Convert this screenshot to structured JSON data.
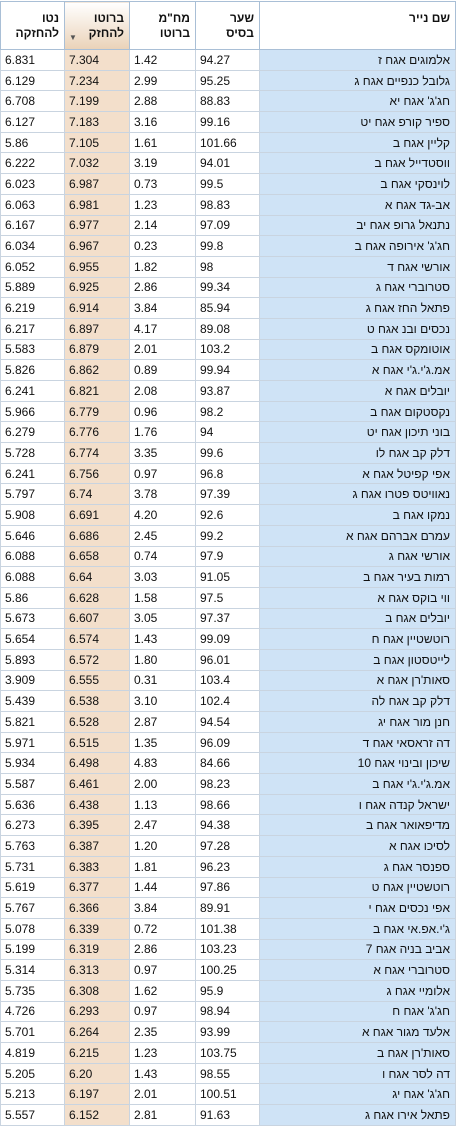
{
  "headers": {
    "name": "שם נייר",
    "base_price": [
      "שער",
      "בסיס"
    ],
    "duration": [
      "מח\"מ",
      "ברוטו"
    ],
    "gross": [
      "ברוטו",
      "להחזק"
    ],
    "net": [
      "נטו",
      "להחזקה"
    ]
  },
  "sort": {
    "column": "gross",
    "direction": "descending",
    "icon": "sort-down-arrow"
  },
  "colors": {
    "name_column": "#cfe3f6",
    "sorted_column": "#f3dfcb",
    "border": "#a9bfd6"
  },
  "rows": [
    {
      "name": "אלמוגים אגח ז",
      "base": "94.27",
      "dur": "1.42",
      "gross": "7.304",
      "net": "6.831"
    },
    {
      "name": "גלובל כנפיים אגח ג",
      "base": "95.25",
      "dur": "2.99",
      "gross": "7.234",
      "net": "6.129"
    },
    {
      "name": "חג'ג' אגח יא",
      "base": "88.83",
      "dur": "2.88",
      "gross": "7.199",
      "net": "6.708"
    },
    {
      "name": "ספיר קורפ אגח יט",
      "base": "99.16",
      "dur": "3.16",
      "gross": "7.183",
      "net": "6.127"
    },
    {
      "name": "קליין אגח ב",
      "base": "101.66",
      "dur": "1.61",
      "gross": "7.105",
      "net": "5.86"
    },
    {
      "name": "ווסטדייל אגח ב",
      "base": "94.01",
      "dur": "3.19",
      "gross": "7.032",
      "net": "6.222"
    },
    {
      "name": "לוינסקי אגח ב",
      "base": "99.5",
      "dur": "0.73",
      "gross": "6.987",
      "net": "6.023"
    },
    {
      "name": "אב-גד אגח א",
      "base": "98.83",
      "dur": "1.23",
      "gross": "6.981",
      "net": "6.063"
    },
    {
      "name": "נתנאל גרופ אגח יב",
      "base": "97.09",
      "dur": "2.14",
      "gross": "6.977",
      "net": "6.167"
    },
    {
      "name": "חג'ג' אירופה אגח ב",
      "base": "99.8",
      "dur": "0.23",
      "gross": "6.967",
      "net": "6.034"
    },
    {
      "name": "אורשי אגח ד",
      "base": "98",
      "dur": "1.82",
      "gross": "6.955",
      "net": "6.052"
    },
    {
      "name": "סטרוברי אגח ג",
      "base": "99.34",
      "dur": "2.86",
      "gross": "6.925",
      "net": "5.889"
    },
    {
      "name": "פתאל החז אגח ג",
      "base": "85.94",
      "dur": "3.84",
      "gross": "6.914",
      "net": "6.219"
    },
    {
      "name": "נכסים ובנ אגח ט",
      "base": "89.08",
      "dur": "4.17",
      "gross": "6.897",
      "net": "6.217"
    },
    {
      "name": "אוטומקס אגח ב",
      "base": "103.2",
      "dur": "2.01",
      "gross": "6.879",
      "net": "5.583"
    },
    {
      "name": "אמ.ג'י.ג'י אגח א",
      "base": "99.94",
      "dur": "0.89",
      "gross": "6.862",
      "net": "5.826"
    },
    {
      "name": "יובלים אגח א",
      "base": "93.87",
      "dur": "2.08",
      "gross": "6.821",
      "net": "6.241"
    },
    {
      "name": "נקסטקום אגח ב",
      "base": "98.2",
      "dur": "0.96",
      "gross": "6.779",
      "net": "5.966"
    },
    {
      "name": "בוני תיכון אגח יט",
      "base": "94",
      "dur": "1.76",
      "gross": "6.776",
      "net": "6.279"
    },
    {
      "name": "דלק קב אגח לו",
      "base": "99.6",
      "dur": "3.35",
      "gross": "6.774",
      "net": "5.728"
    },
    {
      "name": "אפי קפיטל אגח א",
      "base": "96.8",
      "dur": "0.97",
      "gross": "6.756",
      "net": "6.241"
    },
    {
      "name": "נאוויטס פטרו אגח ג",
      "base": "97.39",
      "dur": "3.78",
      "gross": "6.74",
      "net": "5.797"
    },
    {
      "name": "נמקו אגח ב",
      "base": "92.6",
      "dur": "4.20",
      "gross": "6.691",
      "net": "5.908"
    },
    {
      "name": "עמרם אברהם אגח א",
      "base": "99.2",
      "dur": "2.45",
      "gross": "6.686",
      "net": "5.646"
    },
    {
      "name": "אורשי אגח ג",
      "base": "97.9",
      "dur": "0.74",
      "gross": "6.658",
      "net": "6.088"
    },
    {
      "name": "רמות בעיר אגח ב",
      "base": "91.05",
      "dur": "3.03",
      "gross": "6.64",
      "net": "6.088"
    },
    {
      "name": "ווי בוקס אגח א",
      "base": "97.5",
      "dur": "1.58",
      "gross": "6.628",
      "net": "5.86"
    },
    {
      "name": "יובלים אגח ב",
      "base": "97.37",
      "dur": "3.05",
      "gross": "6.607",
      "net": "5.673"
    },
    {
      "name": "רוטשטיין אגח ח",
      "base": "99.09",
      "dur": "1.43",
      "gross": "6.574",
      "net": "5.654"
    },
    {
      "name": "לייטסטון אגח ב",
      "base": "96.01",
      "dur": "1.80",
      "gross": "6.572",
      "net": "5.893"
    },
    {
      "name": "סאות'רן אגח א",
      "base": "103.4",
      "dur": "0.31",
      "gross": "6.555",
      "net": "3.909"
    },
    {
      "name": "דלק קב אגח לה",
      "base": "102.4",
      "dur": "3.10",
      "gross": "6.538",
      "net": "5.439"
    },
    {
      "name": "חנן מור אגח יג",
      "base": "94.54",
      "dur": "2.87",
      "gross": "6.528",
      "net": "5.821"
    },
    {
      "name": "דה זראסאי אגח ד",
      "base": "96.09",
      "dur": "1.35",
      "gross": "6.515",
      "net": "5.971"
    },
    {
      "name": "שיכון ובינוי אגח 10",
      "base": "84.66",
      "dur": "4.83",
      "gross": "6.498",
      "net": "5.934"
    },
    {
      "name": "אמ.ג'י.ג'י אגח ב",
      "base": "98.23",
      "dur": "2.00",
      "gross": "6.461",
      "net": "5.587"
    },
    {
      "name": "ישראל קנדה אגח ו",
      "base": "98.66",
      "dur": "1.13",
      "gross": "6.438",
      "net": "5.636"
    },
    {
      "name": "מדיפאואר אגח ב",
      "base": "94.38",
      "dur": "2.47",
      "gross": "6.395",
      "net": "6.273"
    },
    {
      "name": "לסיכו אגח א",
      "base": "97.28",
      "dur": "1.20",
      "gross": "6.387",
      "net": "5.763"
    },
    {
      "name": "ספנסר אגח ג",
      "base": "96.23",
      "dur": "1.81",
      "gross": "6.383",
      "net": "5.731"
    },
    {
      "name": "רוטשטיין אגח ט",
      "base": "97.86",
      "dur": "1.44",
      "gross": "6.377",
      "net": "5.619"
    },
    {
      "name": "אפי נכסים אגח י",
      "base": "89.91",
      "dur": "3.84",
      "gross": "6.366",
      "net": "5.767"
    },
    {
      "name": "ג'י.אפ.אי אגח ב",
      "base": "101.38",
      "dur": "0.72",
      "gross": "6.339",
      "net": "5.078"
    },
    {
      "name": "אביב בניה אגח 7",
      "base": "103.23",
      "dur": "2.86",
      "gross": "6.319",
      "net": "5.199"
    },
    {
      "name": "סטרוברי אגח א",
      "base": "100.25",
      "dur": "0.97",
      "gross": "6.313",
      "net": "5.314"
    },
    {
      "name": "אלומיי אגח ג",
      "base": "95.9",
      "dur": "1.62",
      "gross": "6.308",
      "net": "5.735"
    },
    {
      "name": "חג'ג' אגח ח",
      "base": "98.94",
      "dur": "0.97",
      "gross": "6.293",
      "net": "4.726"
    },
    {
      "name": "אלעד מגור אגח א",
      "base": "93.99",
      "dur": "2.35",
      "gross": "6.264",
      "net": "5.701"
    },
    {
      "name": "סאות'רן אגח ב",
      "base": "103.75",
      "dur": "1.23",
      "gross": "6.215",
      "net": "4.819"
    },
    {
      "name": "דה לסר אגח ו",
      "base": "98.55",
      "dur": "1.43",
      "gross": "6.20",
      "net": "5.205"
    },
    {
      "name": "חג'ג' אגח יג",
      "base": "100.51",
      "dur": "2.01",
      "gross": "6.197",
      "net": "5.213"
    },
    {
      "name": "פתאל אירו אגח ג",
      "base": "91.63",
      "dur": "2.81",
      "gross": "6.152",
      "net": "5.557"
    }
  ]
}
